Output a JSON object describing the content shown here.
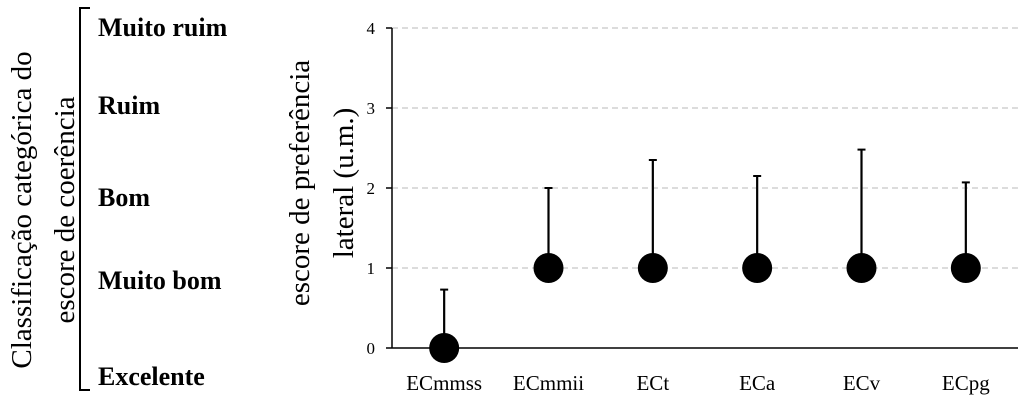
{
  "left_panel": {
    "title_line1": "Classificação categórica do",
    "title_line2": "escore de coerência",
    "categories": [
      "Muito ruim",
      "Ruim",
      "Bom",
      "Muito bom",
      "Excelente"
    ]
  },
  "chart_data": {
    "type": "scatter",
    "title": "",
    "ylabel_line1": "escore de preferência",
    "ylabel_line2": "lateral (u.m.)",
    "xlabel": "",
    "categories": [
      "ECmmss",
      "ECmmii",
      "ECt",
      "ECa",
      "ECv",
      "ECpg"
    ],
    "values": [
      0,
      1,
      1,
      1,
      1,
      1
    ],
    "error_upper": [
      0.73,
      2.0,
      2.35,
      2.15,
      2.48,
      2.07
    ],
    "ylim": [
      0,
      4
    ],
    "yticks": [
      "0",
      "1",
      "2",
      "3",
      "4"
    ],
    "grid": true,
    "marker_color": "#000000",
    "grid_color": "#c8c8c8"
  }
}
